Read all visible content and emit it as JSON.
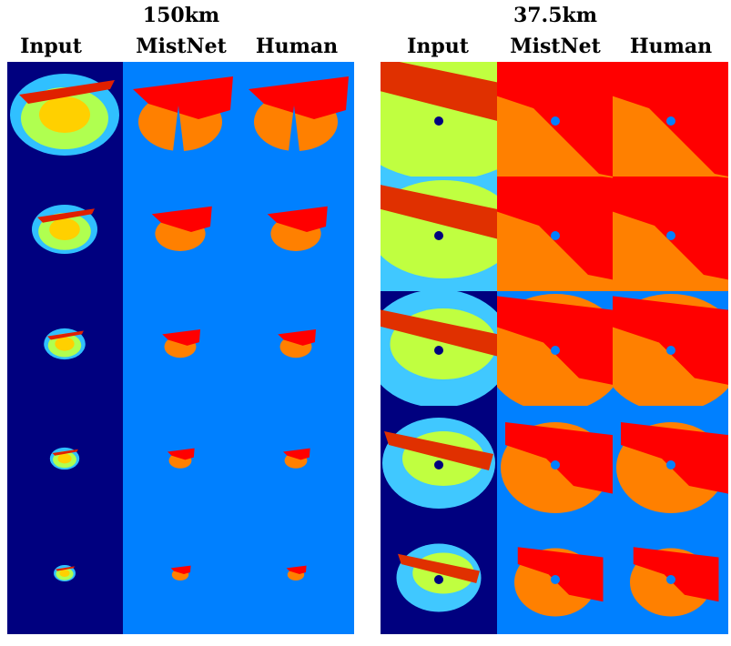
{
  "panels": [
    {
      "title": "150km",
      "columns": [
        "Input",
        "MistNet",
        "Human"
      ]
    },
    {
      "title": "37.5km",
      "columns": [
        "Input",
        "MistNet",
        "Human"
      ]
    }
  ]
}
